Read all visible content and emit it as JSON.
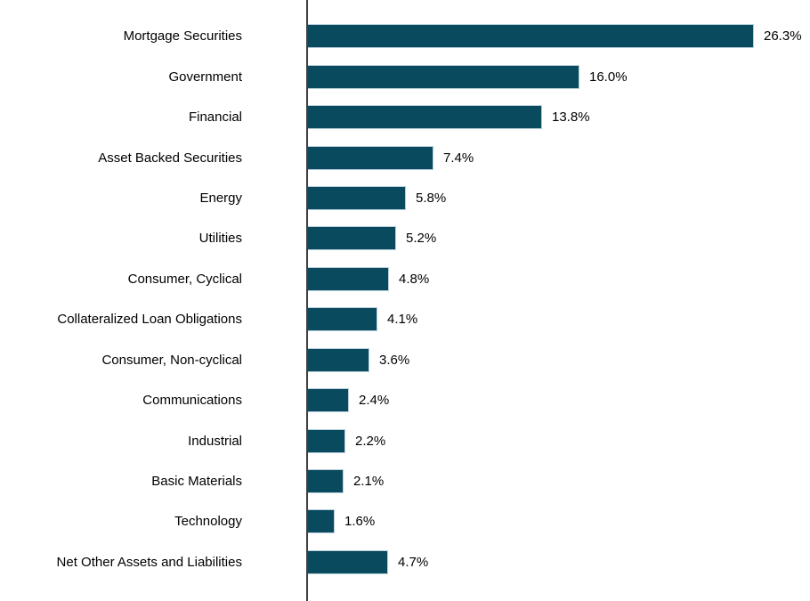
{
  "chart_data": {
    "type": "bar",
    "orientation": "horizontal",
    "title": "",
    "xlabel": "",
    "ylabel": "",
    "categories": [
      "Mortgage Securities",
      "Government",
      "Financial",
      "Asset Backed Securities",
      "Energy",
      "Utilities",
      "Consumer, Cyclical",
      "Collateralized Loan Obligations",
      "Consumer, Non-cyclical",
      "Communications",
      "Industrial",
      "Basic Materials",
      "Technology",
      "Net Other Assets and Liabilities"
    ],
    "values": [
      26.3,
      16.0,
      13.8,
      7.4,
      5.8,
      5.2,
      4.8,
      4.1,
      3.6,
      2.4,
      2.2,
      2.1,
      1.6,
      4.7
    ],
    "value_labels": [
      "26.3%",
      "16.0%",
      "13.8%",
      "7.4%",
      "5.8%",
      "5.2%",
      "4.8%",
      "4.1%",
      "3.6%",
      "2.4%",
      "2.2%",
      "2.1%",
      "1.6%",
      "4.7%"
    ],
    "xlim": [
      0,
      29.7
    ],
    "grid": false,
    "legend": false,
    "bar_color": "#0a4a5f",
    "bar_edge_color": "#b9cfda",
    "axis_line_color": "#404040",
    "text_color": "#000000",
    "background": "#ffffff"
  }
}
